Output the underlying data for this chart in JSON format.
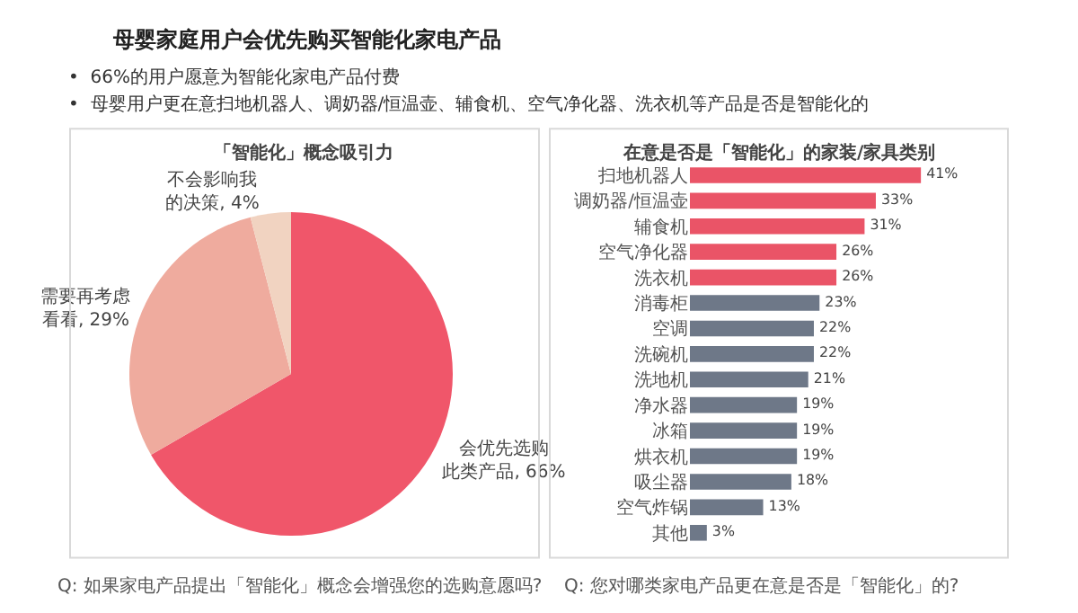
{
  "chart_data": [
    {
      "type": "other",
      "title": "母婴家庭用户会优先购买智能化家电产品",
      "annotations": [
        "•  66%的用户愿意为智能化家电产品付费",
        "•  母婴用户更在意扫地机器人、调奶器/恒温壶、辅食机、空气净化器、洗衣机等产品是否是智能化的"
      ]
    },
    {
      "type": "pie",
      "title": "「智能化」概念吸引力",
      "categories": [
        "会优先选购此类产品",
        "需要再考虑看看",
        "不会影响我的决策"
      ],
      "values": [
        66,
        29,
        4
      ],
      "value_labels": [
        "66%",
        "29%",
        "4%"
      ],
      "colors": [
        "#f0566a",
        "#efab9e",
        "#f1d3c1"
      ],
      "annotations": [
        "Q: 如果家电产品提出「智能化」概念会增强您的选购意愿吗?"
      ]
    },
    {
      "type": "bar",
      "orientation": "horizontal",
      "title": "在意是否是「智能化」的家装/家具类别",
      "categories": [
        "扫地机器人",
        "调奶器/恒温壶",
        "辅食机",
        "空气净化器",
        "洗衣机",
        "消毒柜",
        "空调",
        "洗碗机",
        "洗地机",
        "净水器",
        "冰箱",
        "烘衣机",
        "吸尘器",
        "空气炸锅",
        "其他"
      ],
      "values": [
        41,
        33,
        31,
        26,
        26,
        23,
        22,
        22,
        21,
        19,
        19,
        19,
        18,
        13,
        3
      ],
      "value_labels": [
        "41%",
        "33%",
        "31%",
        "26%",
        "26%",
        "23%",
        "22%",
        "22%",
        "21%",
        "19%",
        "19%",
        "19%",
        "18%",
        "13%",
        "3%"
      ],
      "colors": [
        "#ea5467",
        "#ea5467",
        "#ea5467",
        "#ea5467",
        "#ea5467",
        "#6e7888",
        "#6e7888",
        "#6e7888",
        "#6e7888",
        "#6e7888",
        "#6e7888",
        "#6e7888",
        "#6e7888",
        "#6e7888",
        "#6e7888"
      ],
      "tick_labels": "y",
      "annotations": [
        "Q: 您对哪类家电产品更在意是否是「智能化」的?"
      ]
    }
  ]
}
